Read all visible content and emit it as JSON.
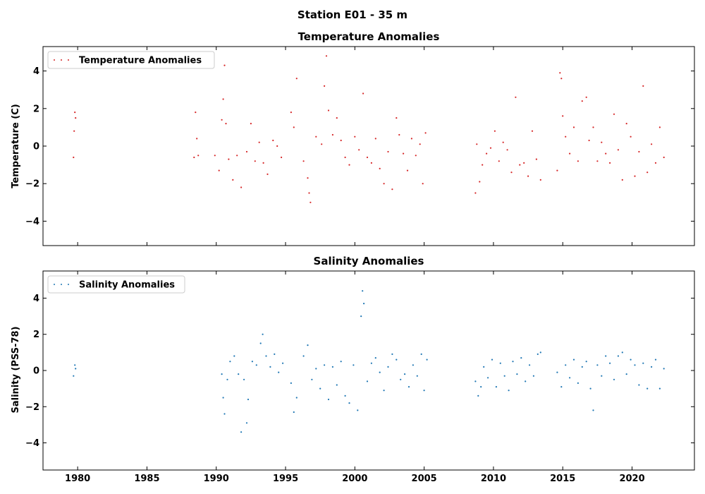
{
  "figure": {
    "suptitle": "Station E01 - 35 m"
  },
  "chart_data": [
    {
      "type": "scatter",
      "title": "Temperature Anomalies",
      "xlabel": "",
      "ylabel": "Temperature (C)",
      "xlim": [
        1977.5,
        2024.5
      ],
      "ylim": [
        -5.3,
        5.3
      ],
      "xticks": [
        1980,
        1985,
        1990,
        1995,
        2000,
        2005,
        2010,
        2015,
        2020
      ],
      "xtick_labels": [],
      "yticks": [
        -4,
        -2,
        0,
        2,
        4
      ],
      "ytick_labels": [
        "−4",
        "−2",
        "0",
        "2",
        "4"
      ],
      "legend": {
        "label": "Temperature Anomalies",
        "position": "top-left"
      },
      "grid": false,
      "color": "#d62728",
      "series": [
        {
          "name": "Temperature Anomalies",
          "x": [
            1979.7,
            1979.75,
            1979.8,
            1979.85,
            1988.4,
            1988.5,
            1988.6,
            1988.7,
            1989.9,
            1990.2,
            1990.4,
            1990.5,
            1990.6,
            1990.7,
            1990.9,
            1991.2,
            1991.5,
            1991.8,
            1992.2,
            1992.5,
            1992.8,
            1993.1,
            1993.4,
            1993.7,
            1994.1,
            1994.4,
            1994.7,
            1995.4,
            1995.6,
            1995.8,
            1996.3,
            1996.6,
            1996.7,
            1996.8,
            1997.2,
            1997.6,
            1997.8,
            1997.95,
            1998.1,
            1998.4,
            1998.7,
            1999.0,
            1999.3,
            1999.6,
            2000.0,
            2000.3,
            2000.6,
            2000.9,
            2001.2,
            2001.5,
            2001.8,
            2002.1,
            2002.4,
            2002.7,
            2003.0,
            2003.2,
            2003.5,
            2003.8,
            2004.1,
            2004.4,
            2004.7,
            2004.9,
            2005.1,
            2008.7,
            2008.8,
            2009.0,
            2009.2,
            2009.5,
            2009.8,
            2010.1,
            2010.4,
            2010.7,
            2011.0,
            2011.3,
            2011.6,
            2011.9,
            2012.2,
            2012.5,
            2012.8,
            2013.1,
            2013.4,
            2014.6,
            2014.8,
            2014.9,
            2015.0,
            2015.2,
            2015.5,
            2015.8,
            2016.1,
            2016.4,
            2016.7,
            2016.9,
            2017.2,
            2017.5,
            2017.8,
            2018.1,
            2018.4,
            2018.7,
            2019.0,
            2019.3,
            2019.6,
            2019.9,
            2020.2,
            2020.5,
            2020.8,
            2021.1,
            2021.4,
            2021.7,
            2022.0,
            2022.3
          ],
          "y": [
            -0.6,
            0.8,
            1.8,
            1.5,
            -0.6,
            1.8,
            0.4,
            -0.5,
            -0.5,
            -1.3,
            1.4,
            2.5,
            4.3,
            1.2,
            -0.7,
            -1.8,
            -0.5,
            -2.2,
            -0.3,
            1.2,
            -0.8,
            0.2,
            -0.9,
            -1.5,
            0.3,
            0.0,
            -0.6,
            1.8,
            1.0,
            3.6,
            -0.8,
            -1.7,
            -2.5,
            -3.0,
            0.5,
            0.1,
            3.2,
            4.8,
            1.9,
            0.6,
            1.5,
            0.3,
            -0.6,
            -1.0,
            0.5,
            -0.2,
            2.8,
            -0.6,
            -0.9,
            0.4,
            -1.2,
            -2.0,
            -0.3,
            -2.3,
            1.5,
            0.6,
            -0.4,
            -1.3,
            0.4,
            -0.5,
            0.1,
            -2.0,
            0.7,
            -2.5,
            0.1,
            -1.9,
            -1.0,
            -0.4,
            -0.1,
            0.8,
            -0.8,
            0.2,
            -0.2,
            -1.4,
            2.6,
            -1.0,
            -0.9,
            -1.6,
            0.8,
            -0.7,
            -1.8,
            -1.3,
            3.9,
            3.6,
            1.6,
            0.5,
            -0.4,
            1.0,
            -0.8,
            2.4,
            2.6,
            0.3,
            1.0,
            -0.8,
            0.2,
            -0.4,
            -0.9,
            1.7,
            -0.2,
            -1.8,
            1.2,
            0.5,
            -1.6,
            -0.3,
            3.2,
            -1.4,
            0.1,
            -0.9,
            1.0,
            -0.6
          ]
        }
      ]
    },
    {
      "type": "scatter",
      "title": "Salinity Anomalies",
      "xlabel": "",
      "ylabel": "Salinity (PSS-78)",
      "xlim": [
        1977.5,
        2024.5
      ],
      "ylim": [
        -5.5,
        5.5
      ],
      "xticks": [
        1980,
        1985,
        1990,
        1995,
        2000,
        2005,
        2010,
        2015,
        2020
      ],
      "xtick_labels": [
        "1980",
        "1985",
        "1990",
        "1995",
        "2000",
        "2005",
        "2010",
        "2015",
        "2020"
      ],
      "yticks": [
        -4,
        -2,
        0,
        2,
        4
      ],
      "ytick_labels": [
        "−4",
        "−2",
        "0",
        "2",
        "4"
      ],
      "legend": {
        "label": "Salinity Anomalies",
        "position": "top-left"
      },
      "grid": false,
      "color": "#1f77b4",
      "series": [
        {
          "name": "Salinity Anomalies",
          "x": [
            1979.7,
            1979.8,
            1979.85,
            1990.4,
            1990.5,
            1990.6,
            1990.8,
            1991.0,
            1991.3,
            1991.6,
            1991.8,
            1992.0,
            1992.2,
            1992.3,
            1992.6,
            1992.9,
            1993.2,
            1993.35,
            1993.6,
            1993.9,
            1994.2,
            1994.5,
            1994.8,
            1995.4,
            1995.6,
            1995.8,
            1996.3,
            1996.6,
            1996.9,
            1997.2,
            1997.5,
            1997.8,
            1998.1,
            1998.4,
            1998.7,
            1999.0,
            1999.3,
            1999.6,
            1999.9,
            2000.2,
            2000.45,
            2000.55,
            2000.65,
            2000.9,
            2001.2,
            2001.5,
            2001.8,
            2002.1,
            2002.4,
            2002.7,
            2003.0,
            2003.3,
            2003.6,
            2003.9,
            2004.2,
            2004.5,
            2004.8,
            2005.0,
            2005.2,
            2008.7,
            2008.9,
            2009.1,
            2009.3,
            2009.6,
            2009.9,
            2010.2,
            2010.5,
            2010.8,
            2011.1,
            2011.4,
            2011.7,
            2012.0,
            2012.3,
            2012.6,
            2012.9,
            2013.2,
            2013.4,
            2014.6,
            2014.9,
            2015.2,
            2015.5,
            2015.8,
            2016.1,
            2016.4,
            2016.7,
            2017.0,
            2017.2,
            2017.5,
            2017.8,
            2018.1,
            2018.4,
            2018.7,
            2019.0,
            2019.3,
            2019.6,
            2019.9,
            2020.2,
            2020.5,
            2020.8,
            2021.1,
            2021.4,
            2021.7,
            2022.0,
            2022.3
          ],
          "y": [
            -0.3,
            0.3,
            0.1,
            -0.2,
            -1.5,
            -2.4,
            -0.5,
            0.5,
            0.8,
            -0.2,
            -3.4,
            -0.5,
            -2.9,
            -1.6,
            0.5,
            0.3,
            1.5,
            2.0,
            0.8,
            0.2,
            0.9,
            -0.1,
            0.4,
            -0.7,
            -2.3,
            -1.5,
            0.8,
            1.4,
            -0.5,
            0.1,
            -1.0,
            0.3,
            -1.6,
            0.2,
            -0.8,
            0.5,
            -1.4,
            -1.8,
            0.3,
            -2.2,
            3.0,
            4.4,
            3.7,
            -0.6,
            0.4,
            0.7,
            -0.1,
            -1.1,
            0.2,
            0.9,
            0.6,
            -0.5,
            -0.2,
            -0.9,
            0.3,
            -0.3,
            0.9,
            -1.1,
            0.6,
            -0.6,
            -1.4,
            -0.9,
            0.2,
            -0.4,
            0.6,
            -0.9,
            0.4,
            -0.3,
            -1.1,
            0.5,
            -0.2,
            0.7,
            -0.6,
            0.3,
            -0.3,
            0.9,
            1.0,
            -0.1,
            -0.9,
            0.3,
            -0.4,
            0.6,
            -0.7,
            0.2,
            0.5,
            -1.0,
            -2.2,
            0.3,
            -0.3,
            0.8,
            0.4,
            -0.5,
            0.8,
            1.0,
            -0.2,
            0.6,
            0.3,
            -0.8,
            0.4,
            -1.0,
            0.2,
            0.6,
            -1.0,
            0.1
          ]
        }
      ]
    }
  ]
}
